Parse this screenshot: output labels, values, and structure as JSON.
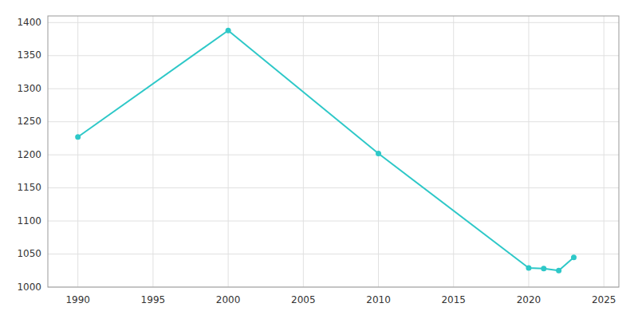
{
  "chart_data": {
    "type": "line",
    "x": [
      1990,
      2000,
      2010,
      2020,
      2021,
      2022,
      2023
    ],
    "values": [
      1227,
      1388,
      1202,
      1029,
      1028,
      1025,
      1045
    ],
    "color": "#2ec8c8",
    "marker": "circle",
    "xlim": [
      1988,
      2026
    ],
    "ylim": [
      1000,
      1410
    ],
    "xticks": [
      1990,
      1995,
      2000,
      2005,
      2010,
      2015,
      2020,
      2025
    ],
    "yticks": [
      1000,
      1050,
      1100,
      1150,
      1200,
      1250,
      1300,
      1350,
      1400
    ],
    "grid": true
  }
}
